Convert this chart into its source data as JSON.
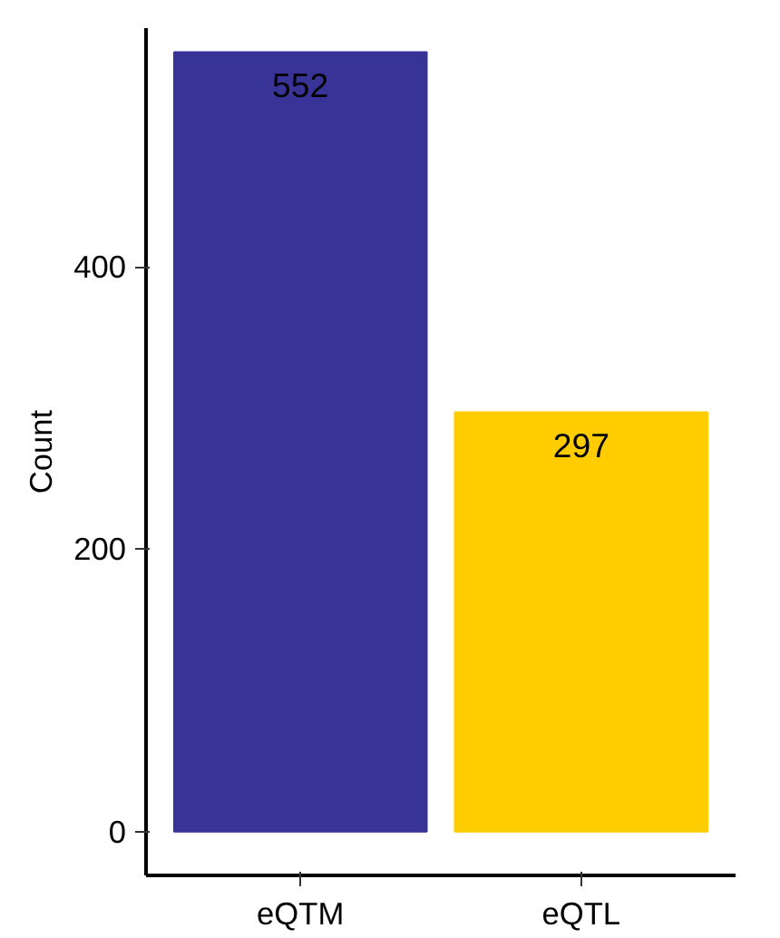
{
  "chart_data": {
    "type": "bar",
    "ylabel": "Count",
    "categories": [
      "eQTM",
      "eQTL"
    ],
    "values": [
      552,
      297
    ],
    "colors": [
      "#373397",
      "#ffcc00"
    ],
    "ylim": [
      -31,
      569
    ],
    "yticks": [
      0,
      200,
      400
    ],
    "data_labels": true,
    "grid": false
  }
}
